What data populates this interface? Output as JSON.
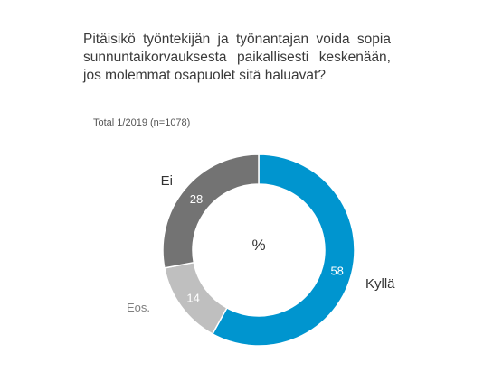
{
  "title": "Pitäisikö työntekijän ja työnantajan voida sopia sunnuntaikorvauksesta paikallisesti keskenään, jos molemmat osapuolet sitä haluavat?",
  "subtitle": "Total 1/2019 (n=1078)",
  "chart_data": {
    "type": "pie",
    "donut": true,
    "center_label": "%",
    "slices": [
      {
        "label": "Kyllä",
        "value": 58,
        "color": "#0095cf"
      },
      {
        "label": "Eos.",
        "value": 14,
        "color": "#bfbfbf"
      },
      {
        "label": "Ei",
        "value": 28,
        "color": "#737373"
      }
    ]
  }
}
